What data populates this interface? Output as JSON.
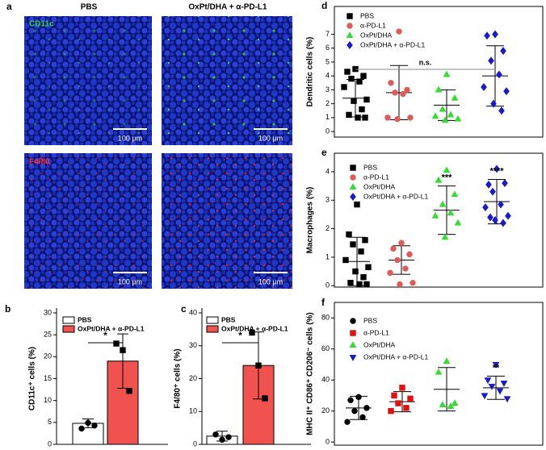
{
  "image_panel": {
    "label": "a",
    "columns": [
      "PBS",
      "OxPt/DHA + α-PD-L1"
    ],
    "rows": [
      "CD11c",
      "F4/80"
    ],
    "scale_bar": "100 μm"
  },
  "chart_data": [
    {
      "type": "bar",
      "panel": "b",
      "ylabel": "CD11c⁺ cells (%)",
      "ylim": [
        0,
        30
      ],
      "yticks": [
        0,
        5,
        10,
        15,
        20,
        25,
        30
      ],
      "significance": "*",
      "series": [
        {
          "name": "PBS",
          "color": "#ffffff",
          "marker": "circle",
          "mean": 4.8,
          "sd": 1.0,
          "points": [
            3.6,
            4.9,
            4.3
          ]
        },
        {
          "name": "OxPt/DHA + α-PD-L1",
          "color": "#f0534f",
          "marker": "square",
          "mean": 19,
          "sd": 6.2,
          "points": [
            23,
            21.5,
            12.2
          ]
        }
      ]
    },
    {
      "type": "bar",
      "panel": "c",
      "ylabel": "F4/80⁺ cells (%)",
      "ylim": [
        0,
        40
      ],
      "yticks": [
        0,
        10,
        20,
        30,
        40
      ],
      "significance": "*",
      "series": [
        {
          "name": "PBS",
          "color": "#ffffff",
          "marker": "circle",
          "mean": 2.5,
          "sd": 1.5,
          "points": [
            3.0,
            1.4,
            2.2
          ]
        },
        {
          "name": "OxPt/DHA + α-PD-L1",
          "color": "#f0534f",
          "marker": "square",
          "mean": 24,
          "sd": 10.2,
          "points": [
            34,
            24,
            14
          ]
        }
      ]
    },
    {
      "type": "dot",
      "panel": "d",
      "ylabel": "Dendritic cells (%)",
      "ylim": [
        -0.4,
        9.0
      ],
      "yticks": [
        0,
        1,
        2,
        3,
        4,
        5,
        6,
        7
      ],
      "significance": "n.s.",
      "series": [
        {
          "name": "PBS",
          "color": "#000000",
          "marker": "square",
          "mean": 2.4,
          "sd": 1.35,
          "points": [
            4.5,
            4.3,
            4.0,
            3.8,
            3.6,
            3.2,
            2.3,
            2.2,
            1.6,
            1.2,
            1.0,
            1.0
          ]
        },
        {
          "name": "α-PD-L1",
          "color": "#e05a5a",
          "marker": "circle",
          "mean": 2.8,
          "sd": 1.95,
          "points": [
            7.2,
            3.5,
            3.0,
            2.8,
            2.7,
            1.0,
            1.0,
            0.9
          ]
        },
        {
          "name": "OxPt/DHA",
          "color": "#33dd33",
          "marker": "triangle",
          "mean": 1.9,
          "sd": 1.1,
          "points": [
            4.1,
            3.0,
            2.4,
            1.6,
            1.2,
            1.1,
            0.9,
            0.8
          ]
        },
        {
          "name": "OxPt/DHA + α-PD-L1",
          "color": "#1a1acc",
          "marker": "diamond",
          "mean": 4.0,
          "sd": 2.17,
          "points": [
            7.0,
            6.9,
            5.8,
            5.1,
            4.1,
            3.2,
            2.9,
            2.0,
            1.5
          ]
        }
      ]
    },
    {
      "type": "dot",
      "panel": "e",
      "ylabel": "Macrophages (%)",
      "ylim": [
        -0.05,
        4.65
      ],
      "yticks": [
        0,
        1,
        2,
        3,
        4
      ],
      "series": [
        {
          "name": "PBS",
          "color": "#000000",
          "marker": "square",
          "mean": 0.85,
          "sd": 0.85,
          "points": [
            2.85,
            1.8,
            1.6,
            1.45,
            1.2,
            0.9,
            0.65,
            0.5,
            0.3,
            0.1,
            0.05,
            0.05
          ]
        },
        {
          "name": "α-PD-L1",
          "color": "#e05a5a",
          "marker": "circle",
          "mean": 0.9,
          "sd": 0.5,
          "points": [
            1.5,
            1.3,
            1.1,
            0.9,
            0.6,
            0.45,
            0.1,
            0.05
          ]
        },
        {
          "name": "OxPt/DHA",
          "color": "#33dd33",
          "marker": "triangle",
          "mean": 2.65,
          "sd": 0.85,
          "annotation": "***",
          "points": [
            4.05,
            3.7,
            3.2,
            2.85,
            2.55,
            2.45,
            2.2,
            1.7
          ]
        },
        {
          "name": "OxPt/DHA + α-PD-L1",
          "color": "#1a1acc",
          "marker": "diamond",
          "mean": 2.95,
          "sd": 0.78,
          "annotation": "****",
          "points": [
            4.1,
            3.55,
            3.6,
            3.3,
            2.85,
            2.75,
            2.45,
            2.3,
            2.2,
            2.4
          ]
        }
      ]
    },
    {
      "type": "dot",
      "panel": "f",
      "ylabel": "MHC II⁺ CD86⁺ CD206⁻ cells (%)",
      "ylim": [
        -2,
        90
      ],
      "yticks": [
        0,
        20,
        40,
        60,
        80
      ],
      "series": [
        {
          "name": "PBS",
          "color": "#000000",
          "marker": "circle",
          "mean": 22,
          "sd": 7.5,
          "points": [
            29,
            27,
            22,
            20,
            16,
            13
          ]
        },
        {
          "name": "α-PD-L1",
          "color": "#e01010",
          "marker": "square",
          "mean": 26,
          "sd": 6.5,
          "points": [
            35,
            30,
            28,
            25,
            22,
            20
          ]
        },
        {
          "name": "OxPt/DHA",
          "color": "#33dd33",
          "marker": "triangle",
          "mean": 34,
          "sd": 14,
          "points": [
            52,
            45,
            25,
            24,
            23
          ]
        },
        {
          "name": "OxPt/DHA + α-PD-L1",
          "color": "#1a1acc",
          "marker": "triangle-down",
          "mean": 35,
          "sd": 7.5,
          "annotation": "**",
          "points": [
            50,
            40,
            38,
            36,
            33,
            30,
            28
          ]
        }
      ]
    }
  ]
}
